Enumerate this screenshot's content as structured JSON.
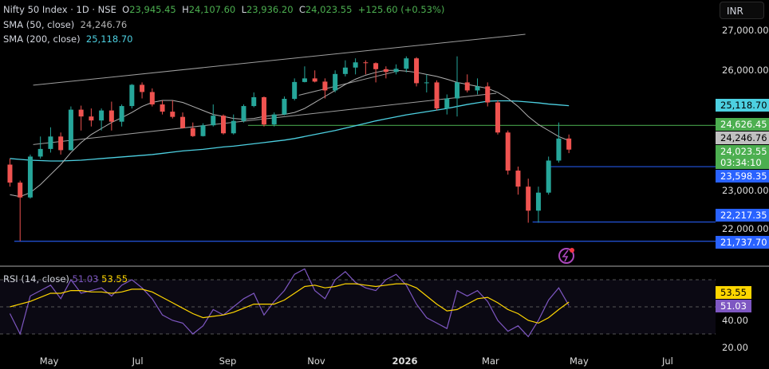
{
  "header": {
    "symbol": "Nifty 50 Index · 1D · NSE",
    "o_label": "O",
    "o": "23,945.45",
    "h_label": "H",
    "h": "24,107.60",
    "l_label": "L",
    "l": "23,936.20",
    "c_label": "C",
    "c": "24,023.55",
    "change": "+125.60 (+0.53%)",
    "sma50_label": "SMA (50, close)",
    "sma50": "24,246.76",
    "sma200_label": "SMA (200, close)",
    "sma200": "25,118.70"
  },
  "currency": "INR",
  "price_axis": [
    "27,000.00",
    "26,000.00",
    "23,000.00",
    "22,000.00"
  ],
  "price_tags": [
    {
      "text": "25,118.70",
      "price": 25118.7,
      "bg": "#4dd0e1",
      "fg": "#000"
    },
    {
      "text": "24,626.45",
      "price": 24626.45,
      "bg": "#4caf50",
      "fg": "#fff"
    },
    {
      "text": "24,246.76",
      "price": 24246.76,
      "bg": "#c0c0c0",
      "fg": "#000"
    },
    {
      "text": "24,023.55",
      "sub": "03:34:10",
      "price": 24023.55,
      "bg": "#4caf50",
      "fg": "#fff"
    },
    {
      "text": "23,598.35",
      "price": 23598.35,
      "bg": "#2962ff",
      "fg": "#fff"
    },
    {
      "text": "22,217.35",
      "price": 22217.35,
      "bg": "#2962ff",
      "fg": "#fff"
    },
    {
      "text": "21,737.70",
      "price": 21737.7,
      "bg": "#2962ff",
      "fg": "#fff"
    }
  ],
  "rsi": {
    "label": "RSI (14, close)",
    "value": "51.03",
    "ma": "53.55",
    "axis": [
      "40.00",
      "20.00"
    ],
    "color": "#7e57c2",
    "ma_color": "#ffd600",
    "values": [
      45,
      30,
      58,
      62,
      66,
      56,
      70,
      60,
      62,
      64,
      58,
      66,
      70,
      64,
      56,
      44,
      40,
      38,
      30,
      36,
      48,
      44,
      50,
      56,
      60,
      44,
      54,
      62,
      74,
      78,
      62,
      56,
      70,
      76,
      68,
      64,
      62,
      70,
      74,
      66,
      52,
      42,
      38,
      34,
      62,
      58,
      62,
      54,
      40,
      32,
      36,
      28,
      40,
      55,
      64,
      51
    ],
    "ma_values": [
      50,
      52,
      54,
      57,
      60,
      60,
      62,
      62,
      61,
      61,
      60,
      61,
      63,
      63,
      61,
      57,
      53,
      49,
      45,
      42,
      43,
      44,
      46,
      49,
      52,
      52,
      52,
      55,
      60,
      65,
      66,
      64,
      65,
      67,
      67,
      66,
      65,
      66,
      67,
      67,
      64,
      58,
      52,
      47,
      48,
      52,
      56,
      57,
      53,
      48,
      45,
      40,
      38,
      42,
      48,
      53.55
    ]
  },
  "x_axis": [
    "May",
    "Jul",
    "Sep",
    "Nov",
    "2026",
    "Mar",
    "May",
    "Jul"
  ],
  "chart_data": {
    "type": "candlestick",
    "colors": {
      "up": "#26a69a",
      "down": "#ef5350",
      "sma50": "#b2b2b2",
      "sma200": "#4dd0e1"
    },
    "ylim": [
      21500,
      27300
    ],
    "dates": [
      "2025-04-04",
      "2025-04-11",
      "2025-04-18",
      "2025-04-25",
      "2025-05-02",
      "2025-05-09",
      "2025-05-16",
      "2025-05-23",
      "2025-05-30",
      "2025-06-06",
      "2025-06-13",
      "2025-06-20",
      "2025-06-27",
      "2025-07-04",
      "2025-07-11",
      "2025-07-18",
      "2025-07-25",
      "2025-08-01",
      "2025-08-08",
      "2025-08-15",
      "2025-08-22",
      "2025-08-29",
      "2025-09-05",
      "2025-09-12",
      "2025-09-19",
      "2025-09-26",
      "2025-10-03",
      "2025-10-10",
      "2025-10-17",
      "2025-10-24",
      "2025-10-31",
      "2025-11-07",
      "2025-11-14",
      "2025-11-21",
      "2025-11-28",
      "2025-12-05",
      "2025-12-12",
      "2025-12-19",
      "2025-12-26",
      "2026-01-02",
      "2026-01-09",
      "2026-01-16",
      "2026-01-23",
      "2026-01-30",
      "2026-02-06",
      "2026-02-13",
      "2026-02-20",
      "2026-02-27",
      "2026-03-06",
      "2026-03-13",
      "2026-03-20",
      "2026-03-27",
      "2026-04-03",
      "2026-04-10",
      "2026-04-17",
      "2026-04-24"
    ],
    "ohlc": [
      [
        23650,
        23800,
        23100,
        23200
      ],
      [
        23200,
        23250,
        21740,
        22830
      ],
      [
        22830,
        23900,
        22800,
        23850
      ],
      [
        23850,
        24350,
        23800,
        24040
      ],
      [
        24040,
        24580,
        23950,
        24350
      ],
      [
        24350,
        24450,
        23900,
        24010
      ],
      [
        24010,
        25100,
        24000,
        25020
      ],
      [
        25020,
        25120,
        24500,
        24850
      ],
      [
        24850,
        25050,
        24600,
        24750
      ],
      [
        24750,
        25050,
        24500,
        25000
      ],
      [
        25000,
        25220,
        24500,
        24720
      ],
      [
        24720,
        25150,
        24600,
        25110
      ],
      [
        25110,
        25660,
        25050,
        25640
      ],
      [
        25640,
        25700,
        25300,
        25460
      ],
      [
        25460,
        25550,
        25100,
        25150
      ],
      [
        25150,
        25250,
        24900,
        24970
      ],
      [
        24970,
        25250,
        24800,
        24840
      ],
      [
        24840,
        24950,
        24550,
        24560
      ],
      [
        24560,
        24700,
        24340,
        24360
      ],
      [
        24360,
        24680,
        24350,
        24630
      ],
      [
        24630,
        25150,
        24600,
        24870
      ],
      [
        24870,
        24900,
        24400,
        24430
      ],
      [
        24430,
        24900,
        24400,
        24740
      ],
      [
        24740,
        25150,
        24700,
        25110
      ],
      [
        25110,
        25450,
        25080,
        25330
      ],
      [
        25330,
        25350,
        24600,
        24650
      ],
      [
        24650,
        24950,
        24600,
        24900
      ],
      [
        24900,
        25350,
        24880,
        25290
      ],
      [
        25290,
        25800,
        25250,
        25710
      ],
      [
        25710,
        26100,
        25700,
        25800
      ],
      [
        25800,
        26000,
        25700,
        25720
      ],
      [
        25720,
        25800,
        25300,
        25500
      ],
      [
        25500,
        26000,
        25450,
        25910
      ],
      [
        25910,
        26250,
        25850,
        26070
      ],
      [
        26070,
        26300,
        25900,
        26200
      ],
      [
        26200,
        26250,
        25900,
        26180
      ],
      [
        26180,
        26200,
        25700,
        26030
      ],
      [
        26030,
        26100,
        25800,
        25960
      ],
      [
        25960,
        26150,
        25900,
        26040
      ],
      [
        26040,
        26350,
        25950,
        26300
      ],
      [
        26300,
        26330,
        25600,
        25680
      ],
      [
        25680,
        25900,
        25450,
        25700
      ],
      [
        25700,
        25750,
        25000,
        25050
      ],
      [
        25050,
        25400,
        24900,
        25300
      ],
      [
        25300,
        26350,
        24850,
        25700
      ],
      [
        25700,
        25900,
        25450,
        25500
      ],
      [
        25500,
        25800,
        25400,
        25600
      ],
      [
        25600,
        25700,
        25100,
        25200
      ],
      [
        25200,
        25250,
        24400,
        24450
      ],
      [
        24450,
        24500,
        23400,
        23500
      ],
      [
        23500,
        23600,
        22900,
        23100
      ],
      [
        23100,
        23300,
        22200,
        22500
      ],
      [
        22500,
        23100,
        22200,
        22950
      ],
      [
        22950,
        23850,
        22900,
        23750
      ],
      [
        23750,
        24700,
        23700,
        24300
      ],
      [
        24300,
        24400,
        23936,
        24023.55
      ]
    ],
    "sma50": [
      22900,
      22850,
      22950,
      23150,
      23400,
      23650,
      23950,
      24200,
      24400,
      24550,
      24700,
      24820,
      24950,
      25100,
      25200,
      25250,
      25250,
      25200,
      25100,
      25000,
      24900,
      24850,
      24800,
      24780,
      24800,
      24850,
      24880,
      24900,
      24950,
      25050,
      25200,
      25350,
      25500,
      25650,
      25780,
      25880,
      25950,
      26000,
      26000,
      25980,
      25950,
      25900,
      25850,
      25780,
      25700,
      25650,
      25600,
      25550,
      25450,
      25300,
      25100,
      24850,
      24650,
      24500,
      24350,
      24246.76
    ],
    "sma200": [
      23800,
      23780,
      23760,
      23750,
      23740,
      23740,
      23750,
      23760,
      23780,
      23800,
      23820,
      23840,
      23860,
      23880,
      23900,
      23930,
      23960,
      23990,
      24010,
      24030,
      24060,
      24090,
      24110,
      24140,
      24170,
      24200,
      24230,
      24260,
      24300,
      24350,
      24400,
      24450,
      24500,
      24560,
      24620,
      24680,
      24740,
      24790,
      24840,
      24890,
      24930,
      24970,
      25010,
      25050,
      25100,
      25150,
      25190,
      25230,
      25240,
      25240,
      25230,
      25210,
      25190,
      25160,
      25140,
      25118.7
    ],
    "trendlines": [
      {
        "from": [
          "2025-04-20",
          25630
        ],
        "to": [
          "2026-03-25",
          26900
        ]
      },
      {
        "from": [
          "2025-04-20",
          24150
        ],
        "to": [
          "2026-03-05",
          25430
        ]
      },
      {
        "from": [
          "2025-10-20",
          25380
        ],
        "to": [
          "2025-12-28",
          25990
        ]
      }
    ],
    "levels": [
      {
        "price": 24626.45,
        "from": "2025-09-15",
        "color": "#4caf50"
      },
      {
        "price": 23598.35,
        "from": "2026-04-10",
        "color": "#2962ff"
      },
      {
        "price": 22217.35,
        "from": "2026-03-30",
        "color": "#2962ff"
      },
      {
        "price": 21737.7,
        "from": "2025-04-07",
        "color": "#2962ff"
      }
    ]
  }
}
